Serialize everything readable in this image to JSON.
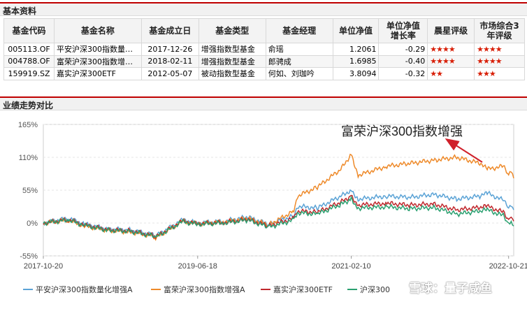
{
  "basic_info": {
    "title": "基本资料",
    "headers": [
      "基金代码",
      "基金名称",
      "基金成立日",
      "基金类型",
      "基金经理",
      "单位净值",
      "单位净值增长率",
      "晨星评级",
      "市场综合3年评级"
    ],
    "rows": [
      {
        "code": "005113.OF",
        "name": "平安沪深300指数量…",
        "date": "2017-12-26",
        "type": "增强指数型基金",
        "manager": "俞瑶",
        "nav": "1.2061",
        "growth": "-0.29",
        "ms_stars": "★★★★",
        "mkt_stars": "★★★★"
      },
      {
        "code": "004788.OF",
        "name": "富荣沪深300指数增…",
        "date": "2018-02-11",
        "type": "增强指数型基金",
        "manager": "郎骋成",
        "nav": "1.6985",
        "growth": "-0.40",
        "ms_stars": "★★★★",
        "mkt_stars": "★★★★"
      },
      {
        "code": "159919.SZ",
        "name": "嘉实沪深300ETF",
        "date": "2012-05-07",
        "type": "被动指数型基金",
        "manager": "何如、刘珈吟",
        "nav": "3.8094",
        "growth": "-0.32",
        "ms_stars": "★★",
        "mkt_stars": "★★★"
      }
    ]
  },
  "performance": {
    "title": "业绩走势对比",
    "annotation": "富荣沪深300指数增强",
    "watermark": "雪球：量子咸鱼"
  },
  "chart_data": {
    "type": "line",
    "y_ticks": [
      "165%",
      "110%",
      "55%",
      "0%",
      "-55%"
    ],
    "ylim": [
      -55,
      165
    ],
    "x_ticks": [
      "2017-10-20",
      "2019-06-18",
      "2021-02-10",
      "2022-10-21"
    ],
    "xlim": [
      "2017-10-20",
      "2022-11-10"
    ],
    "grid": true,
    "legend_position": "bottom",
    "colors": {
      "accent": "#c00000",
      "star": "#d81e06"
    },
    "series": [
      {
        "name": "平安沪深300指数量化增强A",
        "color": "#5ba3d6",
        "points": [
          [
            "2017-10-20",
            0
          ],
          [
            "2018-01-26",
            8
          ],
          [
            "2018-03-30",
            -2
          ],
          [
            "2018-06-29",
            -10
          ],
          [
            "2018-09-28",
            -12
          ],
          [
            "2018-12-28",
            -20
          ],
          [
            "2019-01-04",
            -22
          ],
          [
            "2019-04-19",
            5
          ],
          [
            "2019-06-18",
            0
          ],
          [
            "2019-09-30",
            3
          ],
          [
            "2019-12-31",
            10
          ],
          [
            "2020-03-23",
            -2
          ],
          [
            "2020-06-30",
            12
          ],
          [
            "2020-07-14",
            28
          ],
          [
            "2020-09-30",
            25
          ],
          [
            "2020-12-31",
            45
          ],
          [
            "2021-02-10",
            55
          ],
          [
            "2021-03-09",
            40
          ],
          [
            "2021-06-30",
            45
          ],
          [
            "2021-09-30",
            43
          ],
          [
            "2021-12-31",
            48
          ],
          [
            "2022-03-31",
            40
          ],
          [
            "2022-06-30",
            45
          ],
          [
            "2022-07-29",
            50
          ],
          [
            "2022-09-30",
            38
          ],
          [
            "2022-10-21",
            28
          ],
          [
            "2022-10-31",
            32
          ],
          [
            "2022-11-10",
            22
          ]
        ]
      },
      {
        "name": "富荣沪深300指数增强A",
        "color": "#ee8a2a",
        "points": [
          [
            "2017-10-20",
            0
          ],
          [
            "2018-01-26",
            5
          ],
          [
            "2018-03-30",
            -5
          ],
          [
            "2018-06-29",
            -12
          ],
          [
            "2018-09-28",
            -15
          ],
          [
            "2018-12-28",
            -22
          ],
          [
            "2019-01-04",
            -25
          ],
          [
            "2019-04-19",
            3
          ],
          [
            "2019-06-18",
            -1
          ],
          [
            "2019-09-30",
            2
          ],
          [
            "2019-12-31",
            8
          ],
          [
            "2020-03-23",
            -3
          ],
          [
            "2020-06-30",
            20
          ],
          [
            "2020-07-14",
            45
          ],
          [
            "2020-09-30",
            60
          ],
          [
            "2020-12-31",
            90
          ],
          [
            "2021-02-10",
            115
          ],
          [
            "2021-03-09",
            80
          ],
          [
            "2021-06-30",
            95
          ],
          [
            "2021-09-30",
            100
          ],
          [
            "2021-12-31",
            105
          ],
          [
            "2022-03-31",
            110
          ],
          [
            "2022-06-30",
            100
          ],
          [
            "2022-07-29",
            90
          ],
          [
            "2022-09-30",
            95
          ],
          [
            "2022-10-21",
            82
          ],
          [
            "2022-10-31",
            88
          ],
          [
            "2022-11-10",
            75
          ]
        ]
      },
      {
        "name": "嘉实沪深300ETF",
        "color": "#c0282d",
        "points": [
          [
            "2017-10-20",
            0
          ],
          [
            "2018-01-26",
            6
          ],
          [
            "2018-03-30",
            -3
          ],
          [
            "2018-06-29",
            -11
          ],
          [
            "2018-09-28",
            -13
          ],
          [
            "2018-12-28",
            -21
          ],
          [
            "2019-01-04",
            -23
          ],
          [
            "2019-04-19",
            3
          ],
          [
            "2019-06-18",
            -1
          ],
          [
            "2019-09-30",
            1
          ],
          [
            "2019-12-31",
            6
          ],
          [
            "2020-03-23",
            -5
          ],
          [
            "2020-06-30",
            8
          ],
          [
            "2020-07-14",
            20
          ],
          [
            "2020-09-30",
            18
          ],
          [
            "2020-12-31",
            35
          ],
          [
            "2021-02-10",
            45
          ],
          [
            "2021-03-09",
            30
          ],
          [
            "2021-06-30",
            33
          ],
          [
            "2021-09-30",
            30
          ],
          [
            "2021-12-31",
            32
          ],
          [
            "2022-03-31",
            22
          ],
          [
            "2022-06-30",
            26
          ],
          [
            "2022-07-29",
            28
          ],
          [
            "2022-09-30",
            18
          ],
          [
            "2022-10-21",
            5
          ],
          [
            "2022-10-31",
            10
          ],
          [
            "2022-11-10",
            3
          ]
        ]
      },
      {
        "name": "沪深300",
        "color": "#2aa070",
        "points": [
          [
            "2017-10-20",
            0
          ],
          [
            "2018-01-26",
            5
          ],
          [
            "2018-03-30",
            -4
          ],
          [
            "2018-06-29",
            -12
          ],
          [
            "2018-09-28",
            -14
          ],
          [
            "2018-12-28",
            -22
          ],
          [
            "2019-01-04",
            -24
          ],
          [
            "2019-04-19",
            2
          ],
          [
            "2019-06-18",
            -2
          ],
          [
            "2019-09-30",
            0
          ],
          [
            "2019-12-31",
            5
          ],
          [
            "2020-03-23",
            -7
          ],
          [
            "2020-06-30",
            5
          ],
          [
            "2020-07-14",
            17
          ],
          [
            "2020-09-30",
            15
          ],
          [
            "2020-12-31",
            31
          ],
          [
            "2021-02-10",
            40
          ],
          [
            "2021-03-09",
            25
          ],
          [
            "2021-06-30",
            27
          ],
          [
            "2021-09-30",
            24
          ],
          [
            "2021-12-31",
            26
          ],
          [
            "2022-03-31",
            15
          ],
          [
            "2022-06-30",
            20
          ],
          [
            "2022-07-29",
            22
          ],
          [
            "2022-09-30",
            12
          ],
          [
            "2022-10-21",
            -2
          ],
          [
            "2022-10-31",
            2
          ],
          [
            "2022-11-10",
            -5
          ]
        ]
      }
    ]
  }
}
